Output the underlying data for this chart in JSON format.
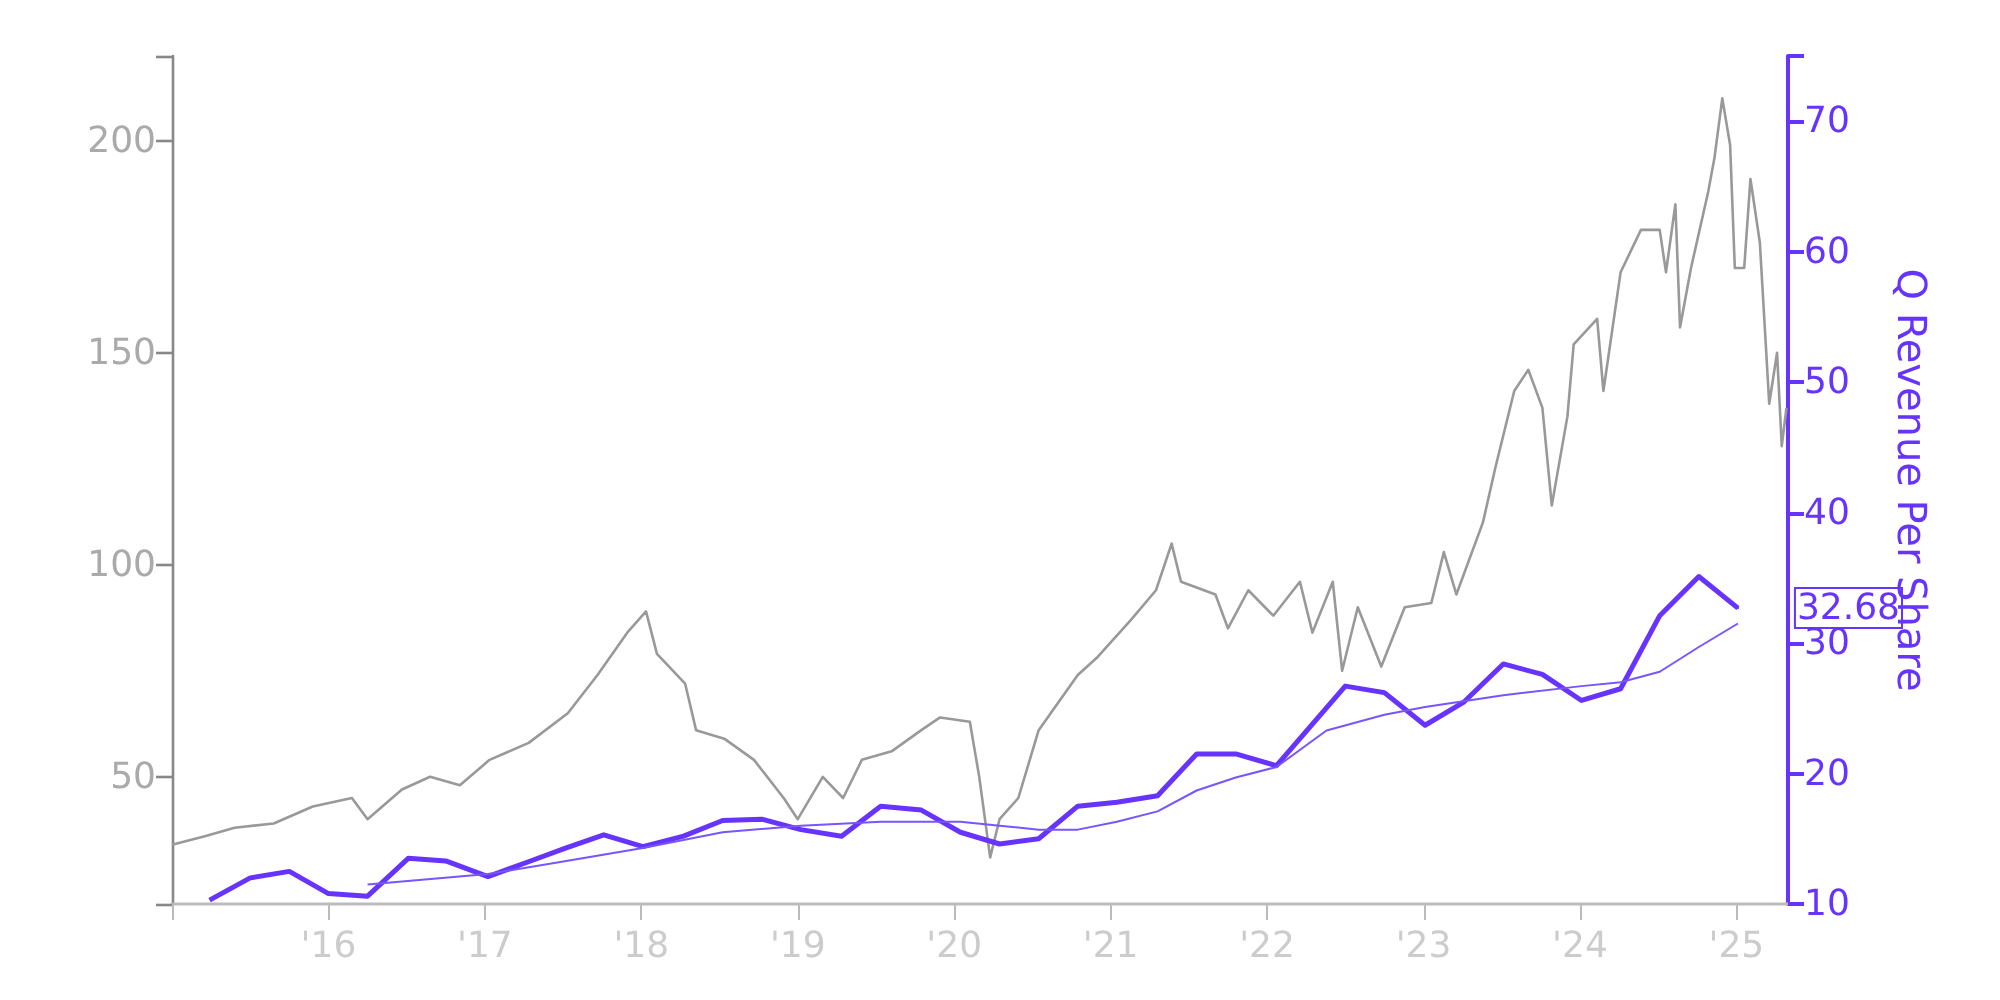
{
  "chart_data": {
    "type": "line",
    "y2label": "Q Revenue Per Share",
    "xlim": [
      2015,
      2025.33
    ],
    "xticks": [
      {
        "value": 2015,
        "label": null
      },
      {
        "value": 2016,
        "label": "'16"
      },
      {
        "value": 2017,
        "label": "'17"
      },
      {
        "value": 2018,
        "label": "'18"
      },
      {
        "value": 2019,
        "label": "'19"
      },
      {
        "value": 2020,
        "label": "'20"
      },
      {
        "value": 2021,
        "label": "'21"
      },
      {
        "value": 2022,
        "label": "'22"
      },
      {
        "value": 2023,
        "label": "'23"
      },
      {
        "value": 2024,
        "label": "'24"
      },
      {
        "value": 2025,
        "label": "'25"
      }
    ],
    "ylim": [
      20,
      220
    ],
    "yticks": [
      {
        "value": 20,
        "label": null
      },
      50,
      100,
      150,
      200,
      {
        "value": 220,
        "label": null
      }
    ],
    "y2lim": [
      10,
      75
    ],
    "y2ticks": [
      10,
      20,
      30,
      40,
      50,
      60,
      70,
      {
        "value": 75,
        "label": null
      }
    ],
    "grid": false,
    "marker": "none",
    "line_style": "solid",
    "series": [
      {
        "color": "#999999",
        "x": [
          2015.0,
          2015.21,
          2015.4,
          2015.65,
          2015.9,
          2016.15,
          2016.25,
          2016.47,
          2016.65,
          2016.84,
          2017.03,
          2017.28,
          2017.53,
          2017.72,
          2017.91,
          2018.03,
          2018.1,
          2018.28,
          2018.35,
          2018.53,
          2018.72,
          2018.91,
          2019.0,
          2019.16,
          2019.29,
          2019.41,
          2019.6,
          2019.79,
          2019.91,
          2020.1,
          2020.16,
          2020.23,
          2020.29,
          2020.41,
          2020.54,
          2020.79,
          2020.91,
          2021.13,
          2021.29,
          2021.39,
          2021.45,
          2021.67,
          2021.75,
          2021.88,
          2022.04,
          2022.21,
          2022.29,
          2022.42,
          2022.48,
          2022.58,
          2022.73,
          2022.88,
          2023.05,
          2023.13,
          2023.21,
          2023.38,
          2023.46,
          2023.58,
          2023.67,
          2023.76,
          2023.82,
          2023.92,
          2023.96,
          2024.11,
          2024.15,
          2024.26,
          2024.39,
          2024.51,
          2024.55,
          2024.61,
          2024.64,
          2024.71,
          2024.82,
          2024.86,
          2024.91,
          2024.96,
          2024.99,
          2025.05,
          2025.09,
          2025.15,
          2025.21,
          2025.26,
          2025.29,
          2025.32
        ],
        "values": [
          34,
          36,
          38,
          39,
          43,
          45,
          40,
          47,
          50,
          48,
          54,
          58,
          65,
          74,
          84,
          89,
          79,
          72,
          61,
          59,
          54,
          45,
          40,
          50,
          45,
          54,
          56,
          61,
          64,
          63,
          50,
          31,
          40,
          45,
          61,
          74,
          78,
          87,
          94,
          105,
          96,
          93,
          85,
          94,
          88,
          96,
          84,
          96,
          75,
          90,
          76,
          90,
          91,
          103,
          93,
          110,
          123,
          141,
          146,
          137,
          114,
          135,
          152,
          158,
          141,
          169,
          179,
          179,
          169,
          185,
          156,
          170,
          188,
          196,
          210,
          199,
          170,
          170,
          191,
          176,
          138,
          150,
          128,
          137
        ]
      },
      {
        "color": "#6633ff",
        "axis": "y2",
        "x": [
          2015.24,
          2015.5,
          2015.75,
          2016.0,
          2016.25,
          2016.51,
          2016.75,
          2017.02,
          2017.27,
          2017.52,
          2017.76,
          2018.01,
          2018.27,
          2018.52,
          2018.77,
          2019.02,
          2019.28,
          2019.53,
          2019.79,
          2020.04,
          2020.29,
          2020.54,
          2020.79,
          2021.04,
          2021.3,
          2021.55,
          2021.8,
          2022.06,
          2022.5,
          2022.75,
          2023.01,
          2023.26,
          2023.51,
          2023.76,
          2024.01,
          2024.26,
          2024.51,
          2024.76,
          2025.01
        ],
        "values": [
          10.3,
          12.0,
          12.5,
          10.8,
          10.6,
          13.5,
          13.3,
          12.1,
          13.2,
          14.3,
          15.3,
          14.4,
          15.2,
          16.4,
          16.5,
          15.7,
          15.2,
          17.5,
          17.2,
          15.5,
          14.6,
          15.0,
          17.5,
          17.8,
          18.3,
          21.5,
          21.5,
          20.6,
          26.7,
          26.2,
          23.7,
          25.5,
          28.4,
          27.6,
          25.6,
          26.5,
          32.1,
          35.1,
          32.68
        ],
        "value_labels": [
          null,
          null,
          null,
          null,
          null,
          null,
          null,
          null,
          null,
          null,
          null,
          null,
          null,
          null,
          null,
          null,
          null,
          null,
          null,
          null,
          null,
          null,
          null,
          null,
          null,
          null,
          null,
          null,
          null,
          null,
          null,
          null,
          null,
          null,
          null,
          null,
          null,
          null,
          "32.68"
        ]
      },
      {
        "color": "#7755ff",
        "axis": "y2",
        "x": [
          2016.25,
          2017.02,
          2017.52,
          2018.01,
          2018.52,
          2019.02,
          2019.53,
          2020.04,
          2020.29,
          2020.54,
          2020.79,
          2021.04,
          2021.3,
          2021.55,
          2021.8,
          2022.06,
          2022.38,
          2022.75,
          2023.01,
          2023.51,
          2024.01,
          2024.26,
          2024.51,
          2024.76,
          2025.01
        ],
        "values": [
          11.5,
          12.3,
          13.3,
          14.3,
          15.5,
          16.0,
          16.3,
          16.3,
          16.0,
          15.7,
          15.7,
          16.3,
          17.1,
          18.7,
          19.7,
          20.5,
          23.3,
          24.5,
          25.1,
          26.0,
          26.7,
          27.0,
          27.8,
          29.7,
          31.5
        ]
      }
    ]
  }
}
